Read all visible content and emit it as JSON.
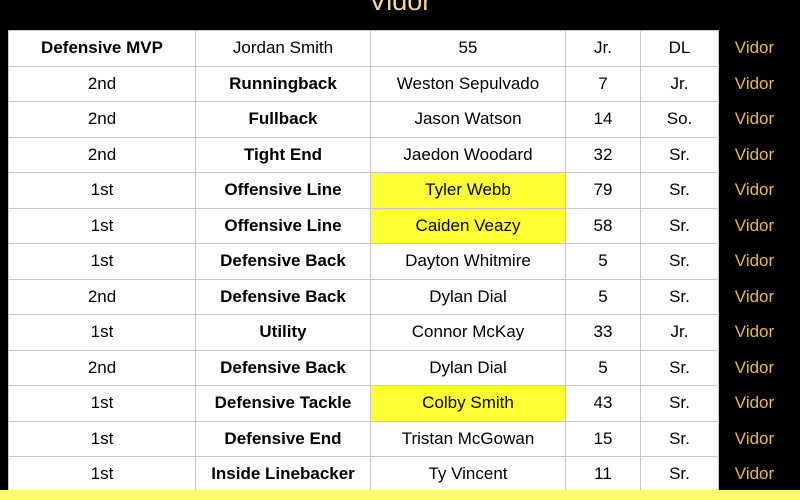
{
  "header": {
    "title": "Vidor"
  },
  "table": {
    "rows": [
      [
        "Defensive MVP",
        "Jordan Smith",
        "55",
        "Jr.",
        "DL",
        "Vidor"
      ],
      [
        "2nd",
        "Runningback",
        "Weston Sepulvado",
        "7",
        "Jr.",
        "Vidor"
      ],
      [
        "2nd",
        "Fullback",
        "Jason Watson",
        "14",
        "So.",
        "Vidor"
      ],
      [
        "2nd",
        "Tight End",
        "Jaedon Woodard",
        "32",
        "Sr.",
        "Vidor"
      ],
      [
        "1st",
        "Offensive Line",
        "Tyler Webb",
        "79",
        "Sr.",
        "Vidor"
      ],
      [
        "1st",
        "Offensive Line",
        "Caiden Veazy",
        "58",
        "Sr.",
        "Vidor"
      ],
      [
        "1st",
        "Defensive Back",
        "Dayton Whitmire",
        "5",
        "Sr.",
        "Vidor"
      ],
      [
        "2nd",
        "Defensive Back",
        "Dylan Dial",
        "5",
        "Sr.",
        "Vidor"
      ],
      [
        "1st",
        "Utility",
        "Connor McKay",
        "33",
        "Jr.",
        "Vidor"
      ],
      [
        "2nd",
        "Defensive Back",
        "Dylan Dial",
        "5",
        "Sr.",
        "Vidor"
      ],
      [
        "1st",
        "Defensive Tackle",
        "Colby Smith",
        "43",
        "Sr.",
        "Vidor"
      ],
      [
        "1st",
        "Defensive End",
        "Tristan McGowan",
        "15",
        "Sr.",
        "Vidor"
      ],
      [
        "1st",
        "Inside Linebacker",
        "Ty Vincent",
        "11",
        "Sr.",
        "Vidor"
      ]
    ]
  }
}
